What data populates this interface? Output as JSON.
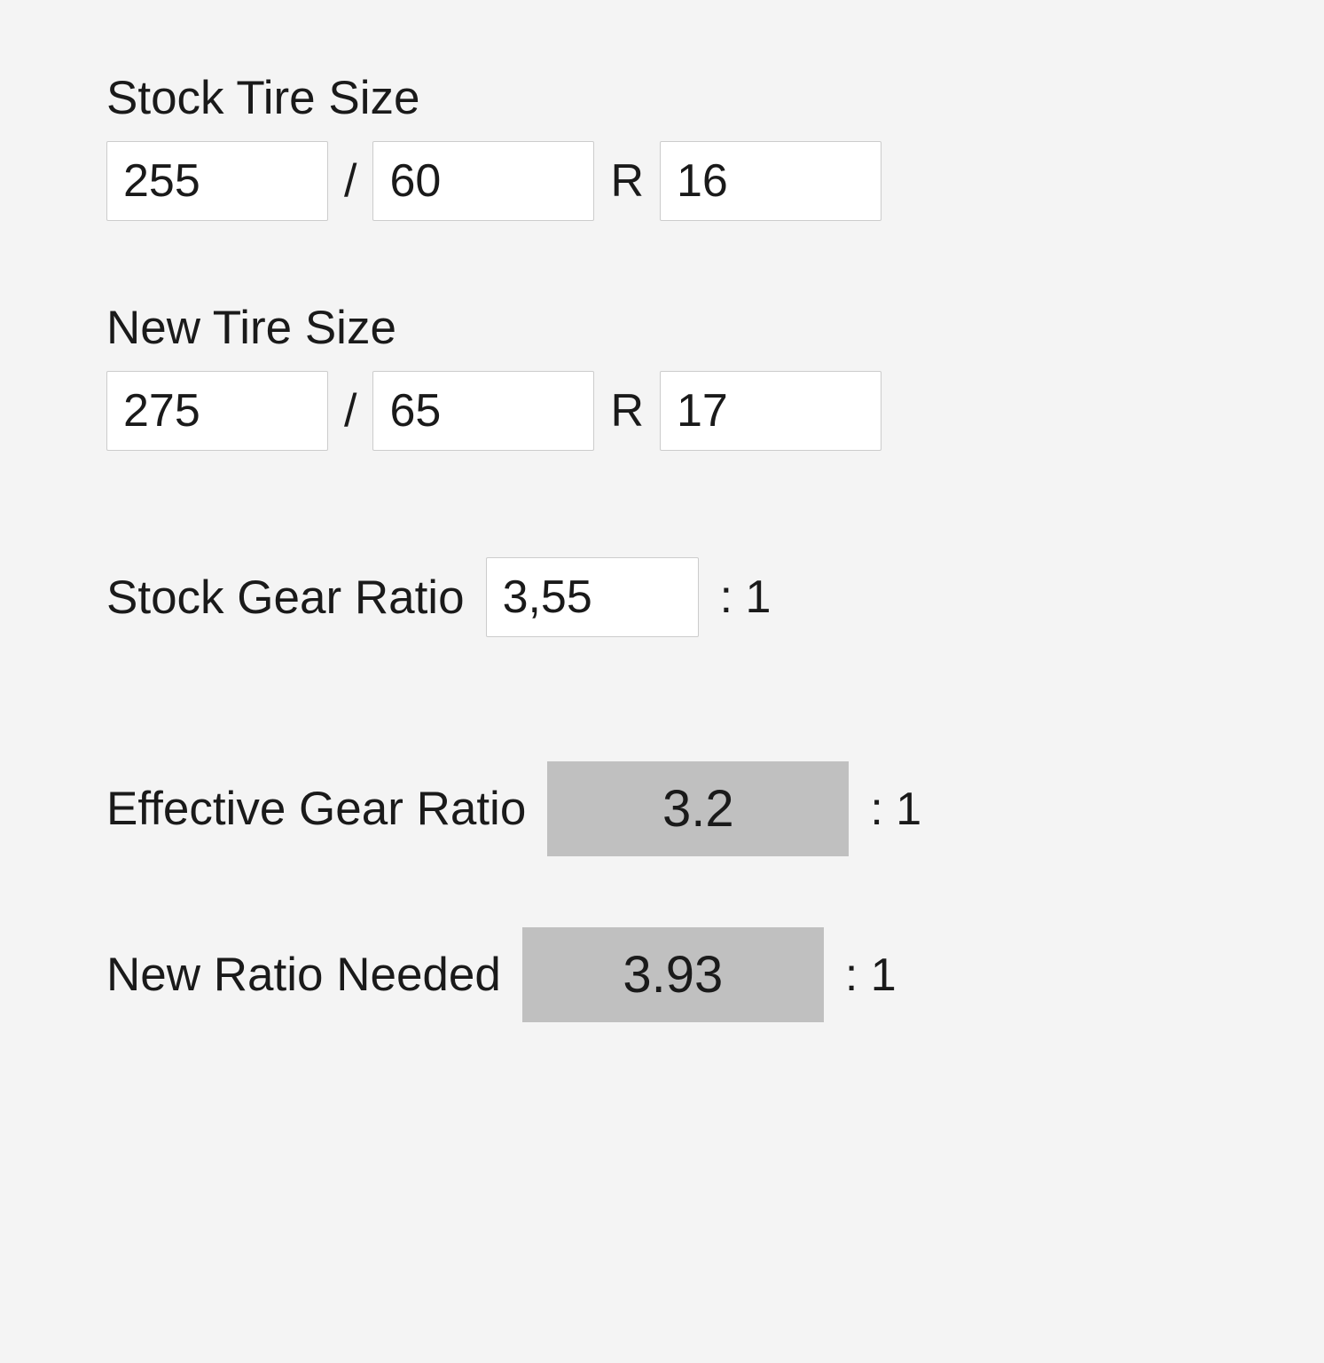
{
  "stock_tire": {
    "label": "Stock Tire Size",
    "width": "255",
    "aspect": "60",
    "rim": "16",
    "separator_slash": "/",
    "separator_r": "R"
  },
  "new_tire": {
    "label": "New Tire Size",
    "width": "275",
    "aspect": "65",
    "rim": "17",
    "separator_slash": "/",
    "separator_r": "R"
  },
  "stock_ratio": {
    "label": "Stock Gear Ratio",
    "value": "3,55",
    "suffix": ": 1"
  },
  "effective_ratio": {
    "label": "Effective Gear Ratio",
    "value": "3.2",
    "suffix": ": 1"
  },
  "new_ratio": {
    "label": "New Ratio Needed",
    "value": "3.93",
    "suffix": ": 1"
  },
  "styling": {
    "background_color": "#f4f4f4",
    "input_border_color": "#cccccc",
    "input_background": "#ffffff",
    "result_background": "#c0c0c0",
    "text_color": "#1a1a1a",
    "label_fontsize": 53,
    "input_fontsize": 52,
    "result_fontsize": 58,
    "font_family": "Arial"
  }
}
